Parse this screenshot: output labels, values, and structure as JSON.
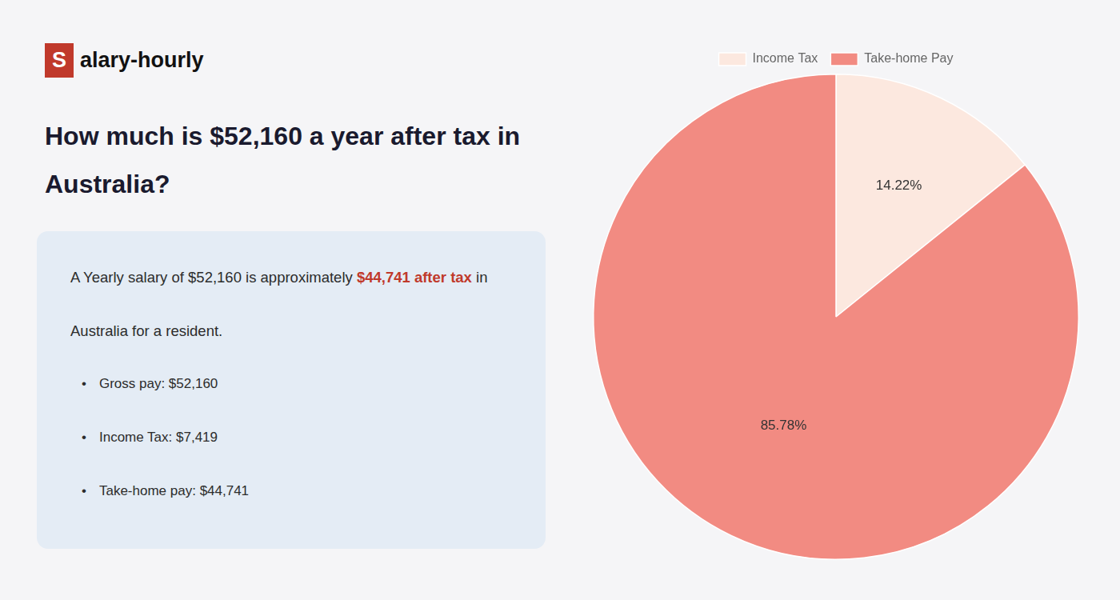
{
  "chart_data": {
    "type": "pie",
    "title": [
      "How much is $52,160 a year after tax in",
      "Australia?"
    ],
    "categories": [
      "Income Tax",
      "Take-home Pay"
    ],
    "values": [
      14.22,
      85.78
    ],
    "value_labels": [
      "14.22%",
      "85.78%"
    ],
    "colors": [
      "#fce8df",
      "#f28b82"
    ],
    "data_labels": true,
    "legend": "top",
    "annotations": [
      [
        {
          "text": "S",
          "color": "#c0392b"
        },
        {
          "text": "alary-hourly"
        }
      ],
      [
        {
          "text": "A Yearly salary of $52,160 is approximately "
        },
        {
          "text": "$44,741 after tax",
          "color": "#c0392b"
        },
        {
          "text": " in"
        }
      ],
      [
        {
          "text": "Australia for a resident."
        }
      ],
      [
        {
          "text": "•"
        },
        {
          "text": "Gross pay: $52,160"
        }
      ],
      [
        {
          "text": "•"
        },
        {
          "text": "Income Tax: $7,419"
        }
      ],
      [
        {
          "text": "•"
        },
        {
          "text": "Take-home pay: $44,741"
        }
      ]
    ]
  }
}
